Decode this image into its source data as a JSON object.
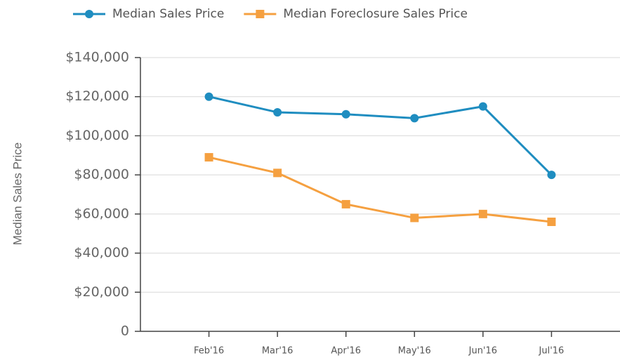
{
  "chart_data": {
    "type": "line",
    "y_label": "Median Sales Price",
    "categories": [
      "Feb'16",
      "Mar'16",
      "Apr'16",
      "May'16",
      "Jun'16",
      "Jul'16"
    ],
    "series": [
      {
        "name": "Median Sales Price",
        "color": "#1f8dc0",
        "marker": "circle",
        "values": [
          120000,
          112000,
          111000,
          109000,
          115000,
          80000
        ]
      },
      {
        "name": "Median Foreclosure Sales Price",
        "color": "#f5a040",
        "marker": "square",
        "values": [
          89000,
          81000,
          65000,
          58000,
          60000,
          56000
        ]
      }
    ],
    "ylim": [
      0,
      140000
    ],
    "yticks": [
      0,
      {
        "value": 20000,
        "label": "$20,000"
      },
      {
        "value": 40000,
        "label": "$40,000"
      },
      {
        "value": 60000,
        "label": "$60,000"
      },
      {
        "value": 80000,
        "label": "$80,000"
      },
      {
        "value": 100000,
        "label": "$100,000"
      },
      {
        "value": 120000,
        "label": "$120,000"
      },
      {
        "value": 140000,
        "label": "$140,000"
      }
    ],
    "grid": true,
    "legend": "top"
  }
}
